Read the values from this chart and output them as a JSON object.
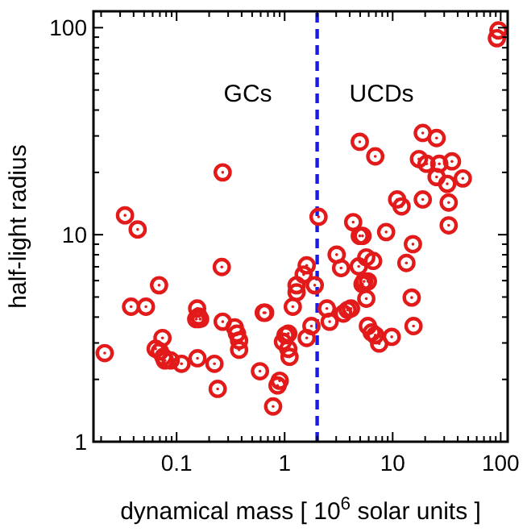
{
  "chart_data": {
    "type": "scatter",
    "xlabel": "dynamical mass   [ 10$^{6}$ solar units ]",
    "ylabel": "half-light radius",
    "log": "xy",
    "marker": "circle",
    "grid": false,
    "xlim": [
      0.017,
      116
    ],
    "ylim": [
      1,
      120
    ],
    "xticks": [
      {
        "value": 0.02,
        "label": null
      },
      {
        "value": 0.03,
        "label": null
      },
      {
        "value": 0.04,
        "label": null
      },
      {
        "value": 0.05,
        "label": null
      },
      {
        "value": 0.06,
        "label": null
      },
      {
        "value": 0.07,
        "label": null
      },
      {
        "value": 0.08,
        "label": null
      },
      {
        "value": 0.09,
        "label": null
      },
      0.1,
      {
        "value": 0.2,
        "label": null
      },
      {
        "value": 0.3,
        "label": null
      },
      {
        "value": 0.4,
        "label": null
      },
      {
        "value": 0.5,
        "label": null
      },
      {
        "value": 0.6,
        "label": null
      },
      {
        "value": 0.7,
        "label": null
      },
      {
        "value": 0.8,
        "label": null
      },
      {
        "value": 0.9,
        "label": null
      },
      1,
      {
        "value": 2,
        "label": null
      },
      {
        "value": 3,
        "label": null
      },
      {
        "value": 4,
        "label": null
      },
      {
        "value": 5,
        "label": null
      },
      {
        "value": 6,
        "label": null
      },
      {
        "value": 7,
        "label": null
      },
      {
        "value": 8,
        "label": null
      },
      {
        "value": 9,
        "label": null
      },
      10,
      {
        "value": 20,
        "label": null
      },
      {
        "value": 30,
        "label": null
      },
      {
        "value": 40,
        "label": null
      },
      {
        "value": 50,
        "label": null
      },
      {
        "value": 60,
        "label": null
      },
      {
        "value": 70,
        "label": null
      },
      {
        "value": 80,
        "label": null
      },
      {
        "value": 90,
        "label": null
      },
      100
    ],
    "yticks": [
      1,
      {
        "value": 2,
        "label": null
      },
      {
        "value": 3,
        "label": null
      },
      {
        "value": 4,
        "label": null
      },
      {
        "value": 5,
        "label": null
      },
      {
        "value": 6,
        "label": null
      },
      {
        "value": 7,
        "label": null
      },
      {
        "value": 8,
        "label": null
      },
      {
        "value": 9,
        "label": null
      },
      10,
      {
        "value": 20,
        "label": null
      },
      {
        "value": 30,
        "label": null
      },
      {
        "value": 40,
        "label": null
      },
      {
        "value": 50,
        "label": null
      },
      {
        "value": 60,
        "label": null
      },
      {
        "value": 70,
        "label": null
      },
      {
        "value": 80,
        "label": null
      },
      {
        "value": 90,
        "label": null
      },
      100
    ],
    "ref_lines": [
      {
        "axis": "x",
        "value": 2,
        "color": "#1a1ae6",
        "line_style": "dashed"
      }
    ],
    "annotations": [
      "GCs",
      "UCDs"
    ],
    "series": [
      {
        "color": "#e31a1a",
        "x": [
          0.0216,
          0.0333,
          0.0436,
          0.0379,
          0.052,
          0.0688,
          0.064,
          0.07,
          0.074,
          0.0755,
          0.078,
          0.088,
          0.111,
          0.156,
          0.155,
          0.16,
          0.152,
          0.165,
          0.224,
          0.24,
          0.267,
          0.262,
          0.267,
          0.345,
          0.362,
          0.379,
          0.379,
          0.591,
          0.641,
          0.66,
          0.782,
          0.86,
          0.9,
          0.965,
          1.02,
          1.08,
          1.11,
          1.08,
          1.19,
          1.29,
          1.29,
          1.5,
          1.6,
          1.6,
          1.77,
          1.9,
          2.06,
          2.46,
          2.61,
          3.03,
          3.33,
          3.5,
          3.83,
          4.11,
          4.31,
          4.96,
          4.96,
          5.26,
          4.85,
          5.26,
          5.44,
          5.9,
          5.7,
          5.7,
          6.6,
          5.9,
          6.4,
          6.9,
          7.5,
          6.9,
          8.7,
          9.8,
          11.0,
          12.1,
          13.4,
          15.0,
          15.4,
          15.6,
          17.5,
          19.0,
          19.0,
          20.6,
          25.5,
          27.0,
          25.5,
          33.0,
          33.0,
          32.0,
          35.4,
          44.6,
          95.4,
          92.2
        ],
        "values": [
          2.68,
          12.4,
          10.6,
          4.49,
          4.49,
          5.7,
          2.81,
          2.73,
          3.17,
          2.57,
          2.47,
          2.47,
          2.38,
          2.53,
          4.4,
          4.03,
          3.91,
          3.91,
          2.38,
          1.8,
          20.0,
          6.98,
          3.8,
          3.57,
          3.33,
          3.08,
          2.78,
          2.19,
          4.2,
          4.2,
          1.48,
          1.87,
          1.97,
          3.04,
          3.27,
          2.81,
          2.57,
          3.33,
          4.49,
          5.27,
          5.7,
          6.42,
          7.11,
          3.17,
          3.62,
          5.7,
          12.2,
          4.4,
          3.8,
          8.01,
          6.9,
          4.16,
          4.33,
          4.4,
          11.5,
          28.1,
          9.87,
          9.87,
          7.03,
          5.77,
          5.95,
          5.95,
          4.91,
          7.77,
          7.47,
          3.62,
          3.37,
          3.27,
          2.98,
          23.9,
          10.3,
          3.21,
          14.8,
          13.7,
          7.3,
          4.97,
          9.0,
          3.62,
          23.2,
          31.0,
          14.8,
          22.0,
          29.3,
          22.0,
          19.0,
          11.1,
          14.3,
          17.6,
          22.6,
          18.7,
          97,
          89
        ]
      }
    ]
  }
}
